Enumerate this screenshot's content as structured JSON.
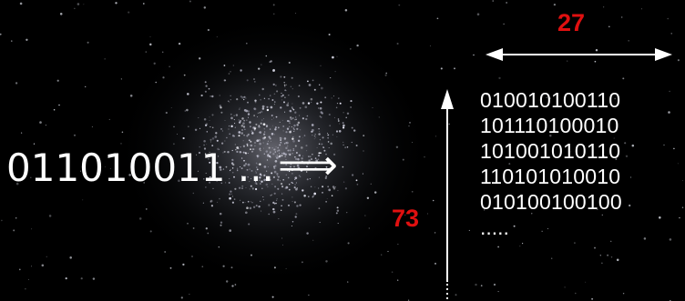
{
  "bitstring": "011010011 ...",
  "implies_symbol": "⟹",
  "width_label": "27",
  "height_label": "73",
  "bit_rows": [
    "010010100110",
    "101110100010",
    "101001010110",
    "110101010010",
    "010100100100"
  ],
  "ellipsis": "....."
}
